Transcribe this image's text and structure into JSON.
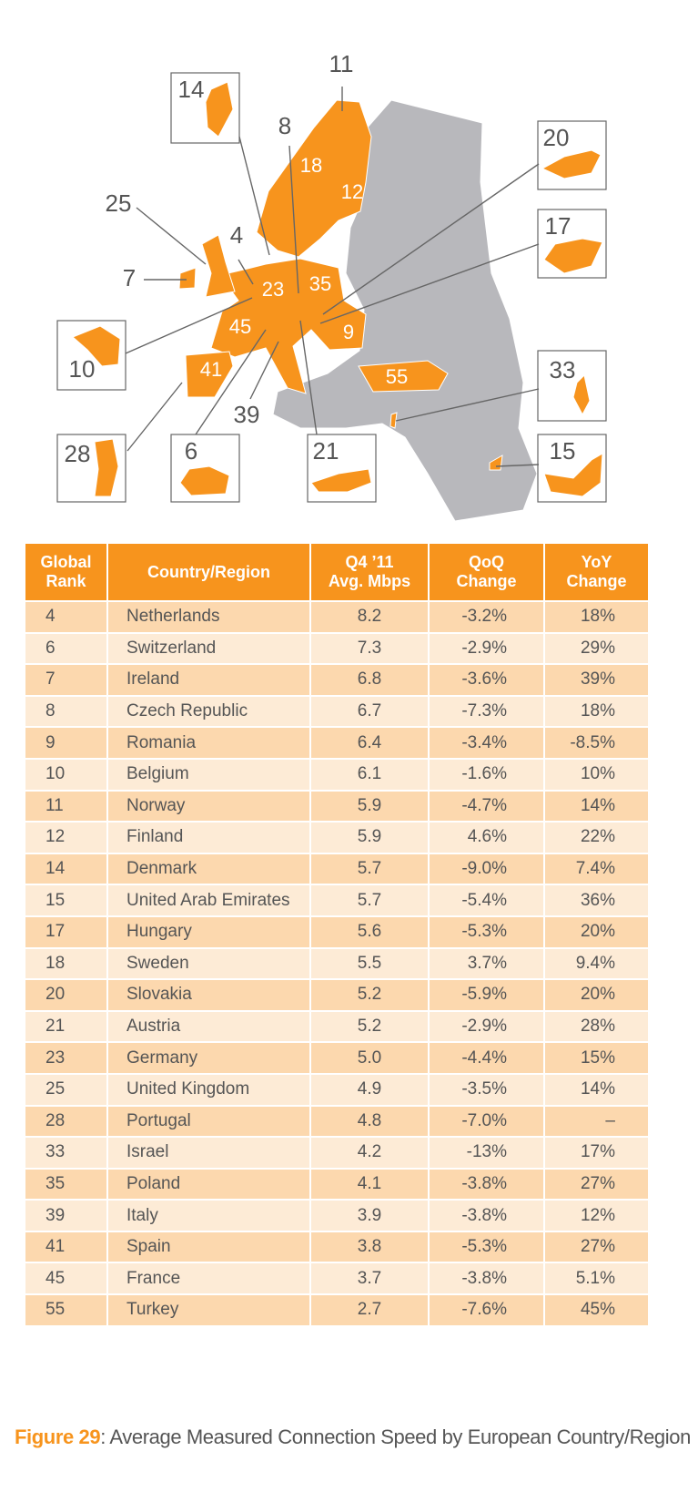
{
  "map": {
    "labels": [
      "11",
      "14",
      "8",
      "18",
      "12",
      "20",
      "25",
      "4",
      "23",
      "35",
      "17",
      "7",
      "45",
      "9",
      "10",
      "41",
      "55",
      "33",
      "39",
      "28",
      "6",
      "21",
      "15"
    ]
  },
  "table": {
    "header": [
      "Global\nRank",
      "Country/Region",
      "Q4 ’11\nAvg. Mbps",
      "QoQ\nChange",
      "YoY\nChange"
    ],
    "rows": [
      [
        "4",
        "Netherlands",
        "8.2",
        "-3.2%",
        "18%"
      ],
      [
        "6",
        "Switzerland",
        "7.3",
        "-2.9%",
        "29%"
      ],
      [
        "7",
        "Ireland",
        "6.8",
        "-3.6%",
        "39%"
      ],
      [
        "8",
        "Czech Republic",
        "6.7",
        "-7.3%",
        "18%"
      ],
      [
        "9",
        "Romania",
        "6.4",
        "-3.4%",
        "-8.5%"
      ],
      [
        "10",
        "Belgium",
        "6.1",
        "-1.6%",
        "10%"
      ],
      [
        "11",
        "Norway",
        "5.9",
        "-4.7%",
        "14%"
      ],
      [
        "12",
        "Finland",
        "5.9",
        "4.6%",
        "22%"
      ],
      [
        "14",
        "Denmark",
        "5.7",
        "-9.0%",
        "7.4%"
      ],
      [
        "15",
        "United Arab Emirates",
        "5.7",
        "-5.4%",
        "36%"
      ],
      [
        "17",
        "Hungary",
        "5.6",
        "-5.3%",
        "20%"
      ],
      [
        "18",
        "Sweden",
        "5.5",
        "3.7%",
        "9.4%"
      ],
      [
        "20",
        "Slovakia",
        "5.2",
        "-5.9%",
        "20%"
      ],
      [
        "21",
        "Austria",
        "5.2",
        "-2.9%",
        "28%"
      ],
      [
        "23",
        "Germany",
        "5.0",
        "-4.4%",
        "15%"
      ],
      [
        "25",
        "United Kingdom",
        "4.9",
        "-3.5%",
        "14%"
      ],
      [
        "28",
        "Portugal",
        "4.8",
        "-7.0%",
        "–"
      ],
      [
        "33",
        "Israel",
        "4.2",
        "-13%",
        "17%"
      ],
      [
        "35",
        "Poland",
        "4.1",
        "-3.8%",
        "27%"
      ],
      [
        "39",
        "Italy",
        "3.9",
        "-3.8%",
        "12%"
      ],
      [
        "41",
        "Spain",
        "3.8",
        "-5.3%",
        "27%"
      ],
      [
        "45",
        "France",
        "3.7",
        "-3.8%",
        "5.1%"
      ],
      [
        "55",
        "Turkey",
        "2.7",
        "-7.6%",
        "45%"
      ]
    ]
  },
  "caption": {
    "label": "Figure 29",
    "text": ": Average Measured Connection Speed by European Country/Region"
  }
}
